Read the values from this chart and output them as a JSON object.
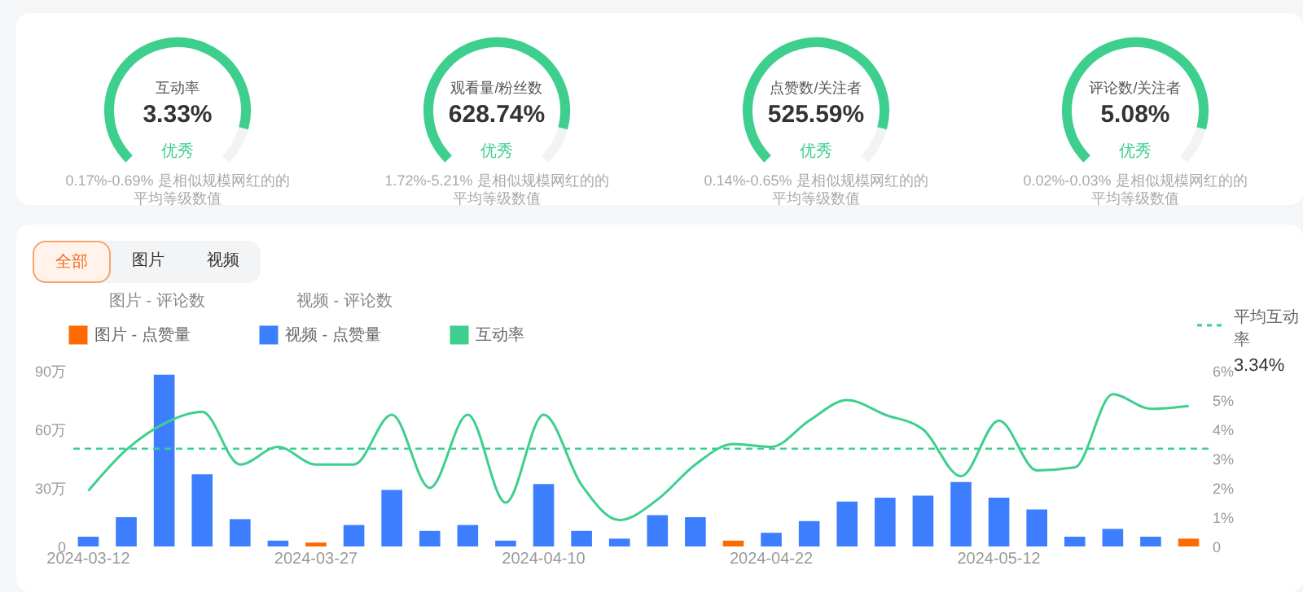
{
  "chart_data": [
    {
      "type": "other",
      "title": "互动率",
      "annotations": [
        "3.33%",
        "优秀",
        "0.17%-0.69% 是相似规模网红的的平均等级数值"
      ]
    },
    {
      "type": "other",
      "title": "观看量/粉丝数",
      "annotations": [
        "628.74%",
        "优秀",
        "1.72%-5.21% 是相似规模网红的的平均等级数值"
      ]
    },
    {
      "type": "other",
      "title": "点赞数/关注者",
      "annotations": [
        "525.59%",
        "优秀",
        "0.14%-0.65% 是相似规模网红的的平均等级数值"
      ]
    },
    {
      "type": "other",
      "title": "评论数/关注者",
      "annotations": [
        "5.08%",
        "优秀",
        "0.02%-0.03% 是相似规模网红的的平均等级数值"
      ]
    },
    {
      "type": "bar",
      "legend": "top",
      "categories": [
        "2024-03-12",
        null,
        null,
        null,
        null,
        null,
        "2024-03-27",
        null,
        null,
        null,
        null,
        null,
        "2024-04-10",
        null,
        null,
        null,
        null,
        null,
        "2024-04-22",
        null,
        null,
        null,
        null,
        null,
        "2024-05-12",
        null,
        null,
        null,
        null,
        null
      ],
      "series": [
        {
          "name": "图片 - 点赞量",
          "color": "#ff6a00",
          "values": [
            null,
            null,
            null,
            null,
            null,
            null,
            2,
            null,
            null,
            null,
            null,
            null,
            null,
            null,
            null,
            null,
            null,
            3,
            null,
            null,
            null,
            null,
            null,
            null,
            null,
            null,
            null,
            null,
            null,
            4
          ]
        },
        {
          "name": "视频 - 点赞量",
          "color": "#3d7eff",
          "values": [
            5,
            15,
            88,
            37,
            14,
            3,
            null,
            11,
            29,
            8,
            11,
            3,
            32,
            8,
            4,
            16,
            15,
            null,
            7,
            13,
            23,
            25,
            26,
            33,
            25,
            19,
            5,
            9,
            5,
            null
          ]
        },
        {
          "name": "互动率",
          "type": "line",
          "axis": "y2",
          "color": "#3ecf8e",
          "values": [
            1.9,
            3.3,
            4.2,
            4.6,
            2.8,
            3.4,
            2.8,
            2.8,
            4.5,
            2.0,
            4.5,
            1.5,
            4.5,
            2.1,
            0.9,
            1.6,
            2.8,
            3.5,
            3.4,
            4.3,
            5.0,
            4.5,
            4.0,
            2.4,
            4.3,
            2.6,
            2.7,
            5.2,
            4.7,
            4.8
          ]
        }
      ],
      "ylim": [
        0,
        90
      ],
      "yticks": [
        {
          "value": 0,
          "label": "0"
        },
        {
          "value": 30,
          "label": "30万"
        },
        {
          "value": 60,
          "label": "60万"
        },
        {
          "value": 90,
          "label": "90万"
        }
      ],
      "y2lim": [
        0,
        6
      ],
      "y2ticks": [
        {
          "value": 0,
          "label": "0"
        },
        {
          "value": 1,
          "label": "1%"
        },
        {
          "value": 2,
          "label": "2%"
        },
        {
          "value": 3,
          "label": "3%"
        },
        {
          "value": 4,
          "label": "4%"
        },
        {
          "value": 5,
          "label": "5%"
        },
        {
          "value": 6,
          "label": "6%"
        }
      ],
      "ref_lines": [
        {
          "axis": "y2",
          "value": 3.34,
          "label": "平均互动率",
          "color": "#3ecf8e",
          "line_style": "dashed"
        }
      ],
      "annotations": [
        "全部",
        "图片",
        "视频",
        "图片 - 评论数",
        "视频 - 评论数",
        "3.34%"
      ]
    }
  ]
}
